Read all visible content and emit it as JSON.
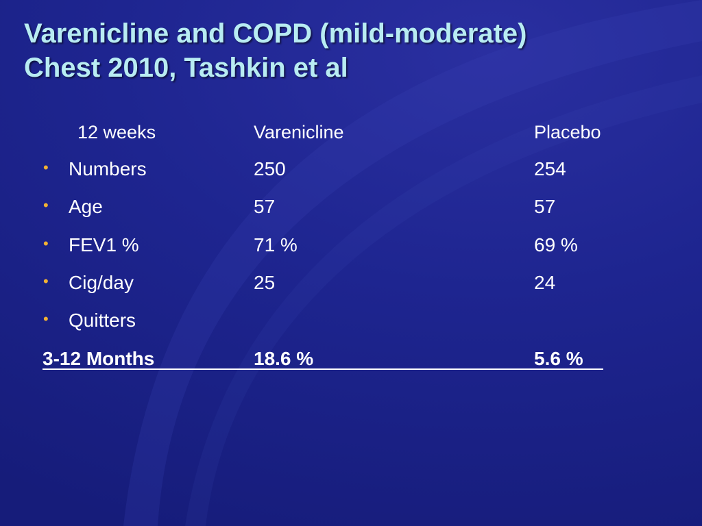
{
  "slide": {
    "title_line1": "Varenicline and COPD (mild-moderate)",
    "title_line2": "Chest 2010, Tashkin et al",
    "accent_title_color": "#b8ecf2",
    "bullet_color": "#f2b233",
    "background_color": "#1e2590",
    "bullet_icon": "bullet-dot-icon"
  },
  "table": {
    "header": {
      "label": "12 weeks",
      "varenicline": "Varenicline",
      "placebo": "Placebo"
    },
    "rows": [
      {
        "label": "Numbers",
        "varenicline": "250",
        "placebo": "254"
      },
      {
        "label": "Age",
        "varenicline": "57",
        "placebo": "57"
      },
      {
        "label": "FEV1 %",
        "varenicline": "71 %",
        "placebo": "69 %"
      },
      {
        "label": "Cig/day",
        "varenicline": "25",
        "placebo": "24"
      },
      {
        "label": "Quitters",
        "varenicline": "",
        "placebo": ""
      }
    ],
    "summary": {
      "label": "3-12 Months",
      "varenicline": "18.6 %",
      "placebo": "5.6 %"
    }
  },
  "bullet_glyph": "•"
}
